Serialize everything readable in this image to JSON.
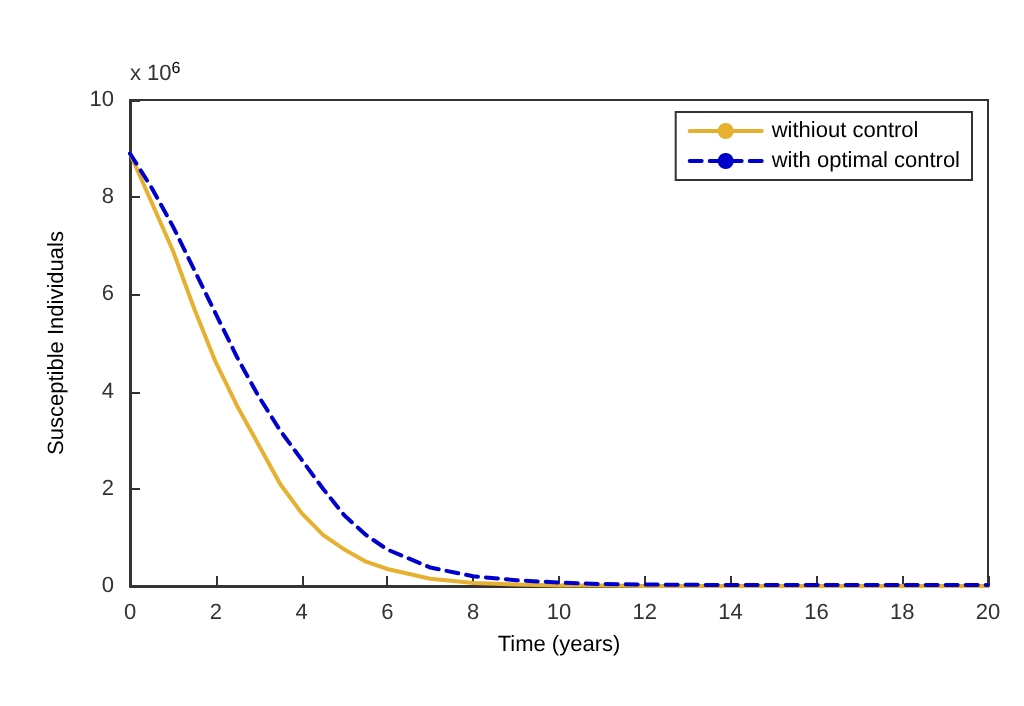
{
  "chart_data": {
    "type": "line",
    "xlabel": "Time (years)",
    "ylabel": "Susceptible Individuals",
    "annotations": [
      "x 10$^{6}$"
    ],
    "x": [
      0,
      0.5,
      1,
      1.5,
      2,
      2.5,
      3,
      3.5,
      4,
      4.5,
      5,
      5.5,
      6,
      7,
      8,
      9,
      10,
      11,
      12,
      14,
      16,
      18,
      20
    ],
    "series": [
      {
        "name": "withiout control",
        "color": "#e6b030",
        "line_style": "solid",
        "values": [
          8.9,
          7.9,
          6.9,
          5.7,
          4.6,
          3.7,
          2.9,
          2.1,
          1.5,
          1.05,
          0.75,
          0.5,
          0.35,
          0.15,
          0.06,
          0.03,
          0.01,
          0.01,
          0,
          0,
          0,
          0,
          0
        ]
      },
      {
        "name": "with optimal control",
        "color": "#0000cc",
        "line_style": "dashed",
        "values": [
          8.9,
          8.2,
          7.4,
          6.5,
          5.6,
          4.7,
          3.9,
          3.2,
          2.6,
          2.0,
          1.45,
          1.05,
          0.75,
          0.38,
          0.2,
          0.12,
          0.07,
          0.04,
          0.03,
          0.02,
          0.02,
          0.02,
          0.02
        ]
      }
    ],
    "xlim": [
      0,
      20
    ],
    "xticks": [
      0,
      2,
      4,
      6,
      8,
      10,
      12,
      14,
      16,
      18,
      20
    ],
    "ylim": [
      0,
      10
    ],
    "yticks": [
      0,
      2,
      4,
      6,
      8,
      10
    ],
    "legend": "top right",
    "grid": false,
    "marker": "none"
  }
}
